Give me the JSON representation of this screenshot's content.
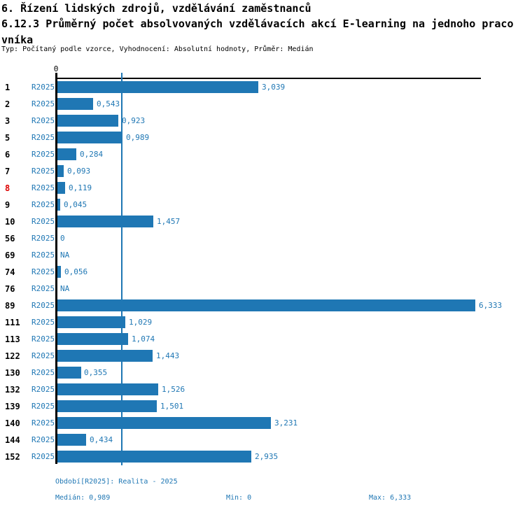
{
  "header": {
    "title_line1": "6. Řízení lidských zdrojů, vzdělávání zaměstnanců",
    "title_line2": "6.12.3 Průměrný počet absolvovaných vzdělávacích akcí E-learning na jednoho pracovníka",
    "subtitle": "Typ: Počítaný podle vzorce, Vyhodnocení: Absolutní hodnoty, Průměr: Medián"
  },
  "colors": {
    "bar": "#1f77b4",
    "text_blue": "#1f77b4",
    "highlight_red": "#dd0000",
    "axis": "#000000"
  },
  "chart_data": {
    "type": "bar",
    "orientation": "horizontal",
    "title": "6.12.3 Průměrný počet absolvovaných vzdělávacích akcí E-learning na jednoho pracovníka",
    "period_label": "R2025",
    "axis_origin_label": "0",
    "xlim": [
      0,
      6.43
    ],
    "median": 0.989,
    "min": 0,
    "max": 6.333,
    "grid": "median-line-only",
    "rows": [
      {
        "id": "1",
        "value": 3.039,
        "display": "3,039"
      },
      {
        "id": "2",
        "value": 0.543,
        "display": "0,543"
      },
      {
        "id": "3",
        "value": 0.923,
        "display": "0,923"
      },
      {
        "id": "5",
        "value": 0.989,
        "display": "0,989"
      },
      {
        "id": "6",
        "value": 0.284,
        "display": "0,284"
      },
      {
        "id": "7",
        "value": 0.093,
        "display": "0,093"
      },
      {
        "id": "8",
        "value": 0.119,
        "display": "0,119",
        "highlight": true
      },
      {
        "id": "9",
        "value": 0.045,
        "display": "0,045"
      },
      {
        "id": "10",
        "value": 1.457,
        "display": "1,457"
      },
      {
        "id": "56",
        "value": 0,
        "display": "0"
      },
      {
        "id": "69",
        "value": null,
        "display": "NA"
      },
      {
        "id": "74",
        "value": 0.056,
        "display": "0,056"
      },
      {
        "id": "76",
        "value": null,
        "display": "NA"
      },
      {
        "id": "89",
        "value": 6.333,
        "display": "6,333"
      },
      {
        "id": "111",
        "value": 1.029,
        "display": "1,029"
      },
      {
        "id": "113",
        "value": 1.074,
        "display": "1,074"
      },
      {
        "id": "122",
        "value": 1.443,
        "display": "1,443"
      },
      {
        "id": "130",
        "value": 0.355,
        "display": "0,355"
      },
      {
        "id": "132",
        "value": 1.526,
        "display": "1,526"
      },
      {
        "id": "139",
        "value": 1.501,
        "display": "1,501"
      },
      {
        "id": "140",
        "value": 3.231,
        "display": "3,231"
      },
      {
        "id": "144",
        "value": 0.434,
        "display": "0,434"
      },
      {
        "id": "152",
        "value": 2.935,
        "display": "2,935"
      }
    ]
  },
  "footer": {
    "period_info": "Období[R2025]: Realita - 2025",
    "median_label": "Medián: 0,989",
    "min_label": "Min: 0",
    "max_label": "Max: 6,333"
  }
}
